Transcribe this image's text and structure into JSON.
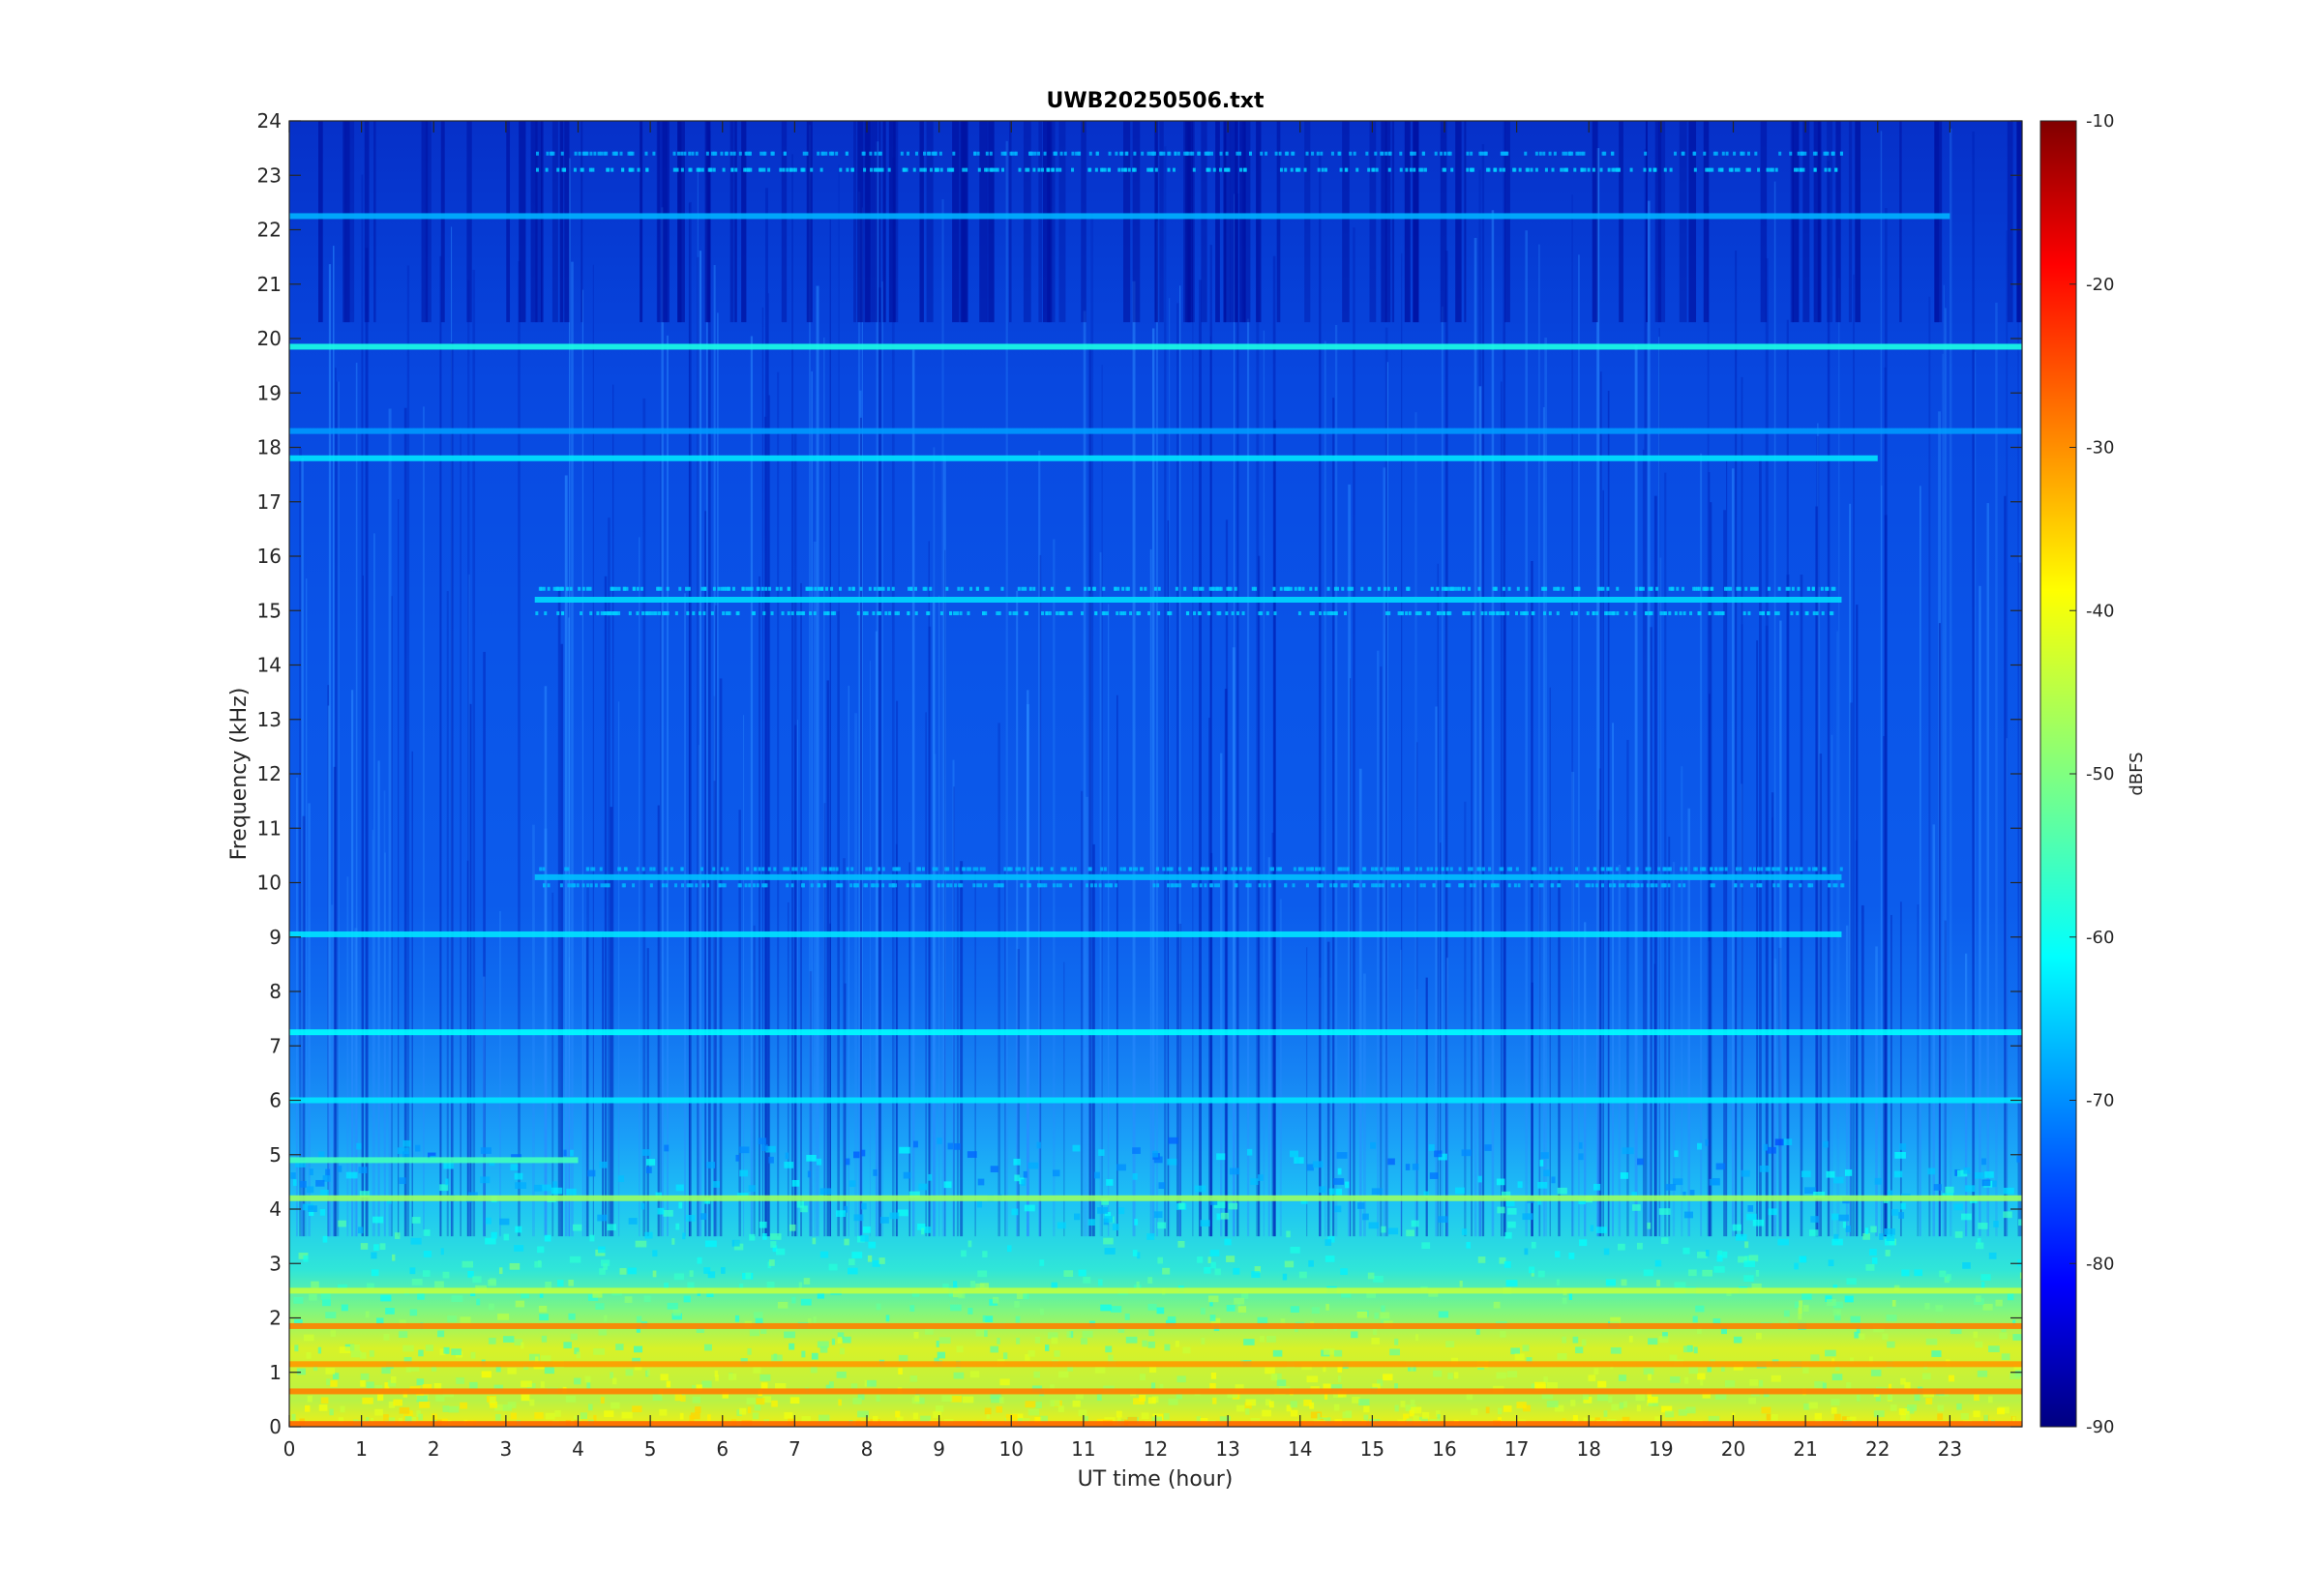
{
  "chart_data": {
    "type": "heatmap",
    "title": "UWB20250506.txt",
    "xlabel": "UT time (hour)",
    "ylabel": "Frequency (kHz)",
    "xlim": [
      0,
      24
    ],
    "ylim": [
      0,
      24
    ],
    "x_ticks": [
      0,
      1,
      2,
      3,
      4,
      5,
      6,
      7,
      8,
      9,
      10,
      11,
      12,
      13,
      14,
      15,
      16,
      17,
      18,
      19,
      20,
      21,
      22,
      23
    ],
    "y_ticks": [
      0,
      1,
      2,
      3,
      4,
      5,
      6,
      7,
      8,
      9,
      10,
      11,
      12,
      13,
      14,
      15,
      16,
      17,
      18,
      19,
      20,
      21,
      22,
      23,
      24
    ],
    "colorbar": {
      "label": "dBFS",
      "range": [
        -90,
        -10
      ],
      "ticks": [
        -10,
        -20,
        -30,
        -40,
        -50,
        -60,
        -70,
        -80,
        -90
      ],
      "colormap": "jet"
    },
    "persistent_lines_khz": [
      {
        "freq": 19.85,
        "level_dbfs": -58,
        "hours": [
          0,
          24
        ]
      },
      {
        "freq": 22.25,
        "level_dbfs": -66,
        "hours": [
          0,
          23
        ]
      },
      {
        "freq": 18.3,
        "level_dbfs": -68,
        "hours": [
          0,
          24
        ]
      },
      {
        "freq": 17.8,
        "level_dbfs": -62,
        "hours": [
          0,
          22
        ]
      },
      {
        "freq": 15.2,
        "level_dbfs": -63,
        "hours": [
          3.4,
          21.5
        ]
      },
      {
        "freq": 10.1,
        "level_dbfs": -65,
        "hours": [
          3.4,
          21.5
        ]
      },
      {
        "freq": 9.05,
        "level_dbfs": -62,
        "hours": [
          0,
          21.5
        ]
      },
      {
        "freq": 7.25,
        "level_dbfs": -60,
        "hours": [
          0,
          24
        ]
      },
      {
        "freq": 6.0,
        "level_dbfs": -62,
        "hours": [
          0,
          24
        ]
      },
      {
        "freq": 4.9,
        "level_dbfs": -55,
        "hours": [
          0,
          4
        ]
      },
      {
        "freq": 4.2,
        "level_dbfs": -48,
        "hours": [
          0,
          24
        ]
      },
      {
        "freq": 2.5,
        "level_dbfs": -45,
        "hours": [
          0,
          24
        ]
      },
      {
        "freq": 1.85,
        "level_dbfs": -30,
        "hours": [
          0,
          24
        ]
      },
      {
        "freq": 1.15,
        "level_dbfs": -32,
        "hours": [
          0,
          24
        ]
      },
      {
        "freq": 0.65,
        "level_dbfs": -30,
        "hours": [
          0,
          24
        ]
      },
      {
        "freq": 0.05,
        "level_dbfs": -28,
        "hours": [
          0,
          24
        ]
      }
    ]
  }
}
